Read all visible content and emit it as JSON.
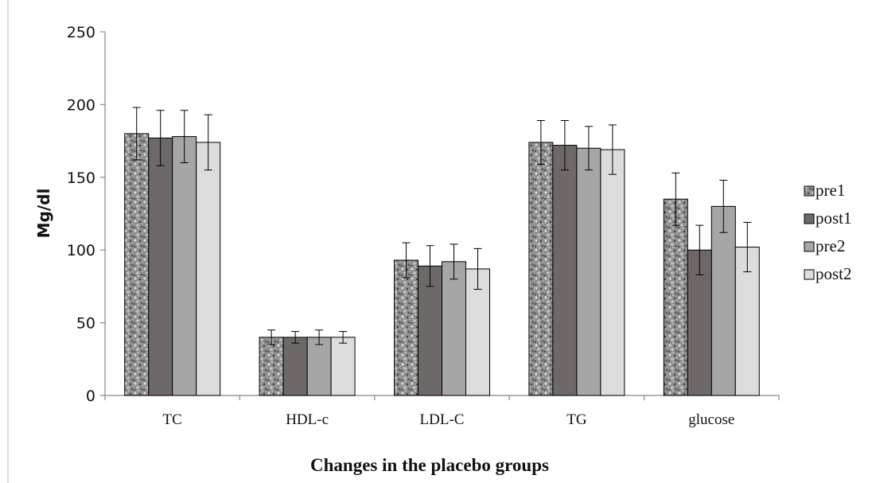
{
  "chart_data": {
    "type": "bar",
    "title": "",
    "xlabel": "Changes in the placebo groups",
    "ylabel": "Mg/dl",
    "ylim": [
      0,
      250
    ],
    "yticks": [
      "0",
      "50",
      "100",
      "150",
      "200",
      "250"
    ],
    "categories": [
      "TC",
      "HDL-c",
      "LDL-C",
      "TG",
      "glucose"
    ],
    "grid": false,
    "legend_position": "right",
    "series": [
      {
        "name": "pre1",
        "color": "#9a9a9a",
        "pattern": "speckled",
        "values": [
          180,
          40,
          93,
          174,
          135
        ],
        "errors": [
          18,
          5,
          12,
          15,
          18
        ]
      },
      {
        "name": "post1",
        "color": "#6e6868",
        "pattern": "solid",
        "values": [
          177,
          40,
          89,
          172,
          100
        ],
        "errors": [
          19,
          4,
          14,
          17,
          17
        ]
      },
      {
        "name": "pre2",
        "color": "#a6a6a6",
        "pattern": "solid",
        "values": [
          178,
          40,
          92,
          170,
          130
        ],
        "errors": [
          18,
          5,
          12,
          15,
          18
        ]
      },
      {
        "name": "post2",
        "color": "#dcdcdc",
        "pattern": "solid",
        "values": [
          174,
          40,
          87,
          169,
          102
        ],
        "errors": [
          19,
          4,
          14,
          17,
          17
        ]
      }
    ]
  }
}
